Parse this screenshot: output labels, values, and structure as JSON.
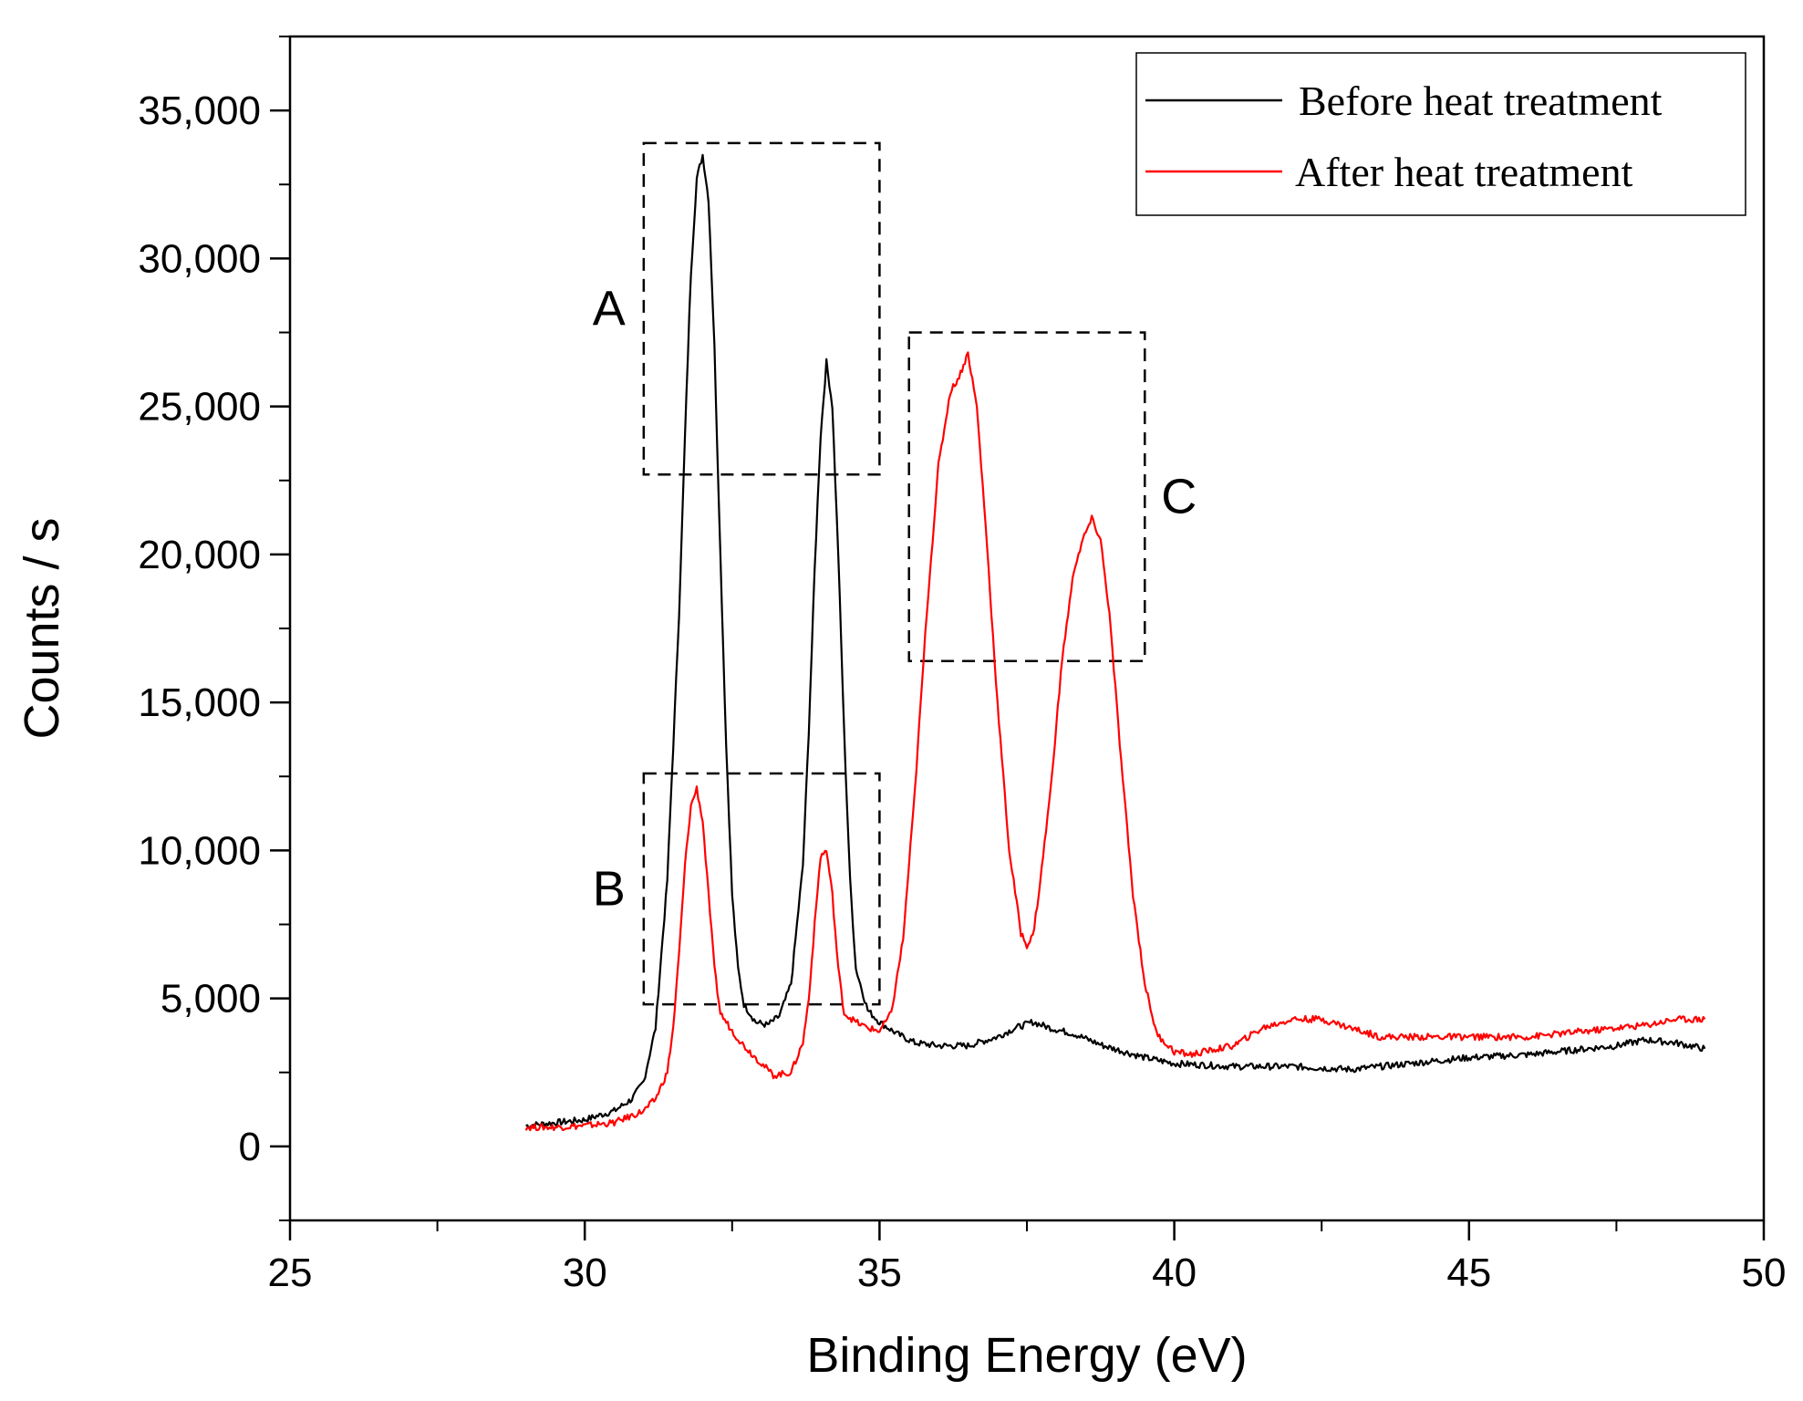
{
  "chart_data": {
    "type": "line",
    "title": "",
    "xlabel": "Binding Energy (eV)",
    "ylabel": "Counts / s",
    "xlim": [
      25,
      50
    ],
    "ylim": [
      -2500,
      37500
    ],
    "xticks": [
      25,
      30,
      35,
      40,
      45,
      50
    ],
    "xtick_labels": [
      "25",
      "30",
      "35",
      "40",
      "45",
      "50"
    ],
    "yticks": [
      0,
      5000,
      10000,
      15000,
      20000,
      25000,
      30000,
      35000
    ],
    "ytick_labels": [
      "0",
      "5,000",
      "10,000",
      "15,000",
      "20,000",
      "25,000",
      "30,000",
      "35,000"
    ],
    "grid": false,
    "legend_position": "top-right",
    "series": [
      {
        "name": "Before heat treatment",
        "color": "#000000",
        "x": [
          29.0,
          29.5,
          30.0,
          30.5,
          30.8,
          31.0,
          31.2,
          31.4,
          31.6,
          31.7,
          31.8,
          31.9,
          32.0,
          32.1,
          32.2,
          32.3,
          32.4,
          32.5,
          32.6,
          32.7,
          32.9,
          33.1,
          33.3,
          33.5,
          33.7,
          33.8,
          33.9,
          34.0,
          34.1,
          34.2,
          34.3,
          34.4,
          34.5,
          34.6,
          34.8,
          35.0,
          35.3,
          35.6,
          36.0,
          36.5,
          37.0,
          37.3,
          37.6,
          37.9,
          38.3,
          38.8,
          39.5,
          40.0,
          41.0,
          42.0,
          43.0,
          44.0,
          45.0,
          46.0,
          47.0,
          47.5,
          48.0,
          48.5,
          49.0
        ],
        "y": [
          700,
          800,
          900,
          1200,
          1600,
          2200,
          4000,
          9000,
          18000,
          24000,
          29500,
          32700,
          33500,
          32000,
          27000,
          20000,
          13500,
          8500,
          6000,
          4800,
          4200,
          4100,
          4400,
          5500,
          9500,
          14000,
          19500,
          24000,
          26500,
          25000,
          20000,
          14000,
          9000,
          6000,
          4600,
          4200,
          3800,
          3500,
          3400,
          3400,
          3700,
          4000,
          4200,
          4000,
          3800,
          3400,
          3000,
          2800,
          2700,
          2700,
          2600,
          2800,
          3000,
          3100,
          3300,
          3400,
          3600,
          3500,
          3300
        ]
      },
      {
        "name": "After heat treatment",
        "color": "#ff0000",
        "x": [
          29.0,
          29.5,
          30.0,
          30.5,
          31.0,
          31.2,
          31.4,
          31.5,
          31.6,
          31.7,
          31.8,
          31.9,
          32.0,
          32.1,
          32.2,
          32.3,
          32.5,
          32.7,
          32.9,
          33.2,
          33.5,
          33.7,
          33.8,
          33.9,
          34.0,
          34.1,
          34.2,
          34.3,
          34.4,
          34.6,
          34.8,
          35.0,
          35.2,
          35.4,
          35.6,
          35.8,
          36.0,
          36.2,
          36.35,
          36.5,
          36.65,
          36.8,
          37.0,
          37.2,
          37.4,
          37.5,
          37.6,
          37.7,
          37.9,
          38.1,
          38.3,
          38.45,
          38.6,
          38.75,
          38.9,
          39.1,
          39.3,
          39.5,
          39.7,
          40.0,
          40.3,
          40.5,
          41.0,
          41.5,
          42.0,
          42.5,
          43.0,
          43.5,
          44.0,
          45.0,
          46.0,
          47.0,
          48.0,
          48.5,
          49.0
        ],
        "y": [
          650,
          650,
          700,
          800,
          1200,
          1600,
          2500,
          4000,
          6500,
          9500,
          11500,
          12100,
          11000,
          8500,
          6000,
          4500,
          3900,
          3400,
          3000,
          2400,
          2500,
          3500,
          5000,
          7500,
          9800,
          10000,
          8500,
          6000,
          4500,
          4200,
          4000,
          3900,
          4500,
          7000,
          12000,
          18000,
          23000,
          25500,
          26000,
          26800,
          25000,
          21000,
          15000,
          10000,
          7200,
          6800,
          7100,
          8500,
          12000,
          16500,
          19500,
          20500,
          21200,
          20500,
          18000,
          13000,
          8500,
          5500,
          3800,
          3200,
          3100,
          3200,
          3400,
          4000,
          4300,
          4300,
          4000,
          3700,
          3700,
          3700,
          3700,
          3900,
          4100,
          4300,
          4300
        ]
      }
    ],
    "annotations": [
      {
        "label": "A",
        "x_range": [
          31.0,
          35.0
        ],
        "y_range": [
          22700,
          33900
        ]
      },
      {
        "label": "B",
        "x_range": [
          31.0,
          35.0
        ],
        "y_range": [
          4800,
          12600
        ]
      },
      {
        "label": "C",
        "x_range": [
          35.5,
          39.5
        ],
        "y_range": [
          16400,
          27500
        ]
      }
    ]
  }
}
